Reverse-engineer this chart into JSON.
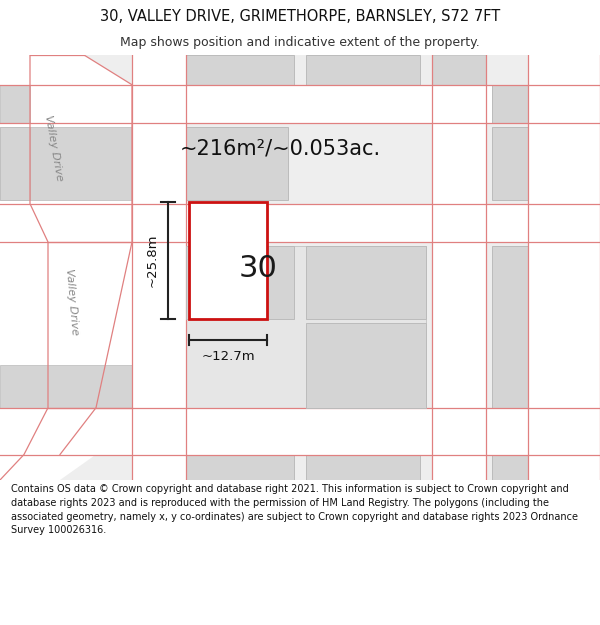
{
  "title_line1": "30, VALLEY DRIVE, GRIMETHORPE, BARNSLEY, S72 7FT",
  "title_line2": "Map shows position and indicative extent of the property.",
  "area_text": "~216m²/~0.053ac.",
  "width_label": "~12.7m",
  "height_label": "~25.8m",
  "number_label": "30",
  "footer_text": "Contains OS data © Crown copyright and database right 2021. This information is subject to Crown copyright and database rights 2023 and is reproduced with the permission of HM Land Registry. The polygons (including the associated geometry, namely x, y co-ordinates) are subject to Crown copyright and database rights 2023 Ordnance Survey 100026316.",
  "map_bg": "#eeeeee",
  "road_color": "#ffffff",
  "building_color": "#d4d4d4",
  "building_edge": "#bbbbbb",
  "road_line_color": "#e08080",
  "highlight_color": "#cc1111",
  "text_color": "#111111",
  "street_label_color": "#888888",
  "dim_color": "#222222",
  "title1_fontsize": 10.5,
  "title2_fontsize": 9,
  "area_fontsize": 15,
  "num_fontsize": 22,
  "dim_fontsize": 9.5,
  "street_fontsize": 8
}
